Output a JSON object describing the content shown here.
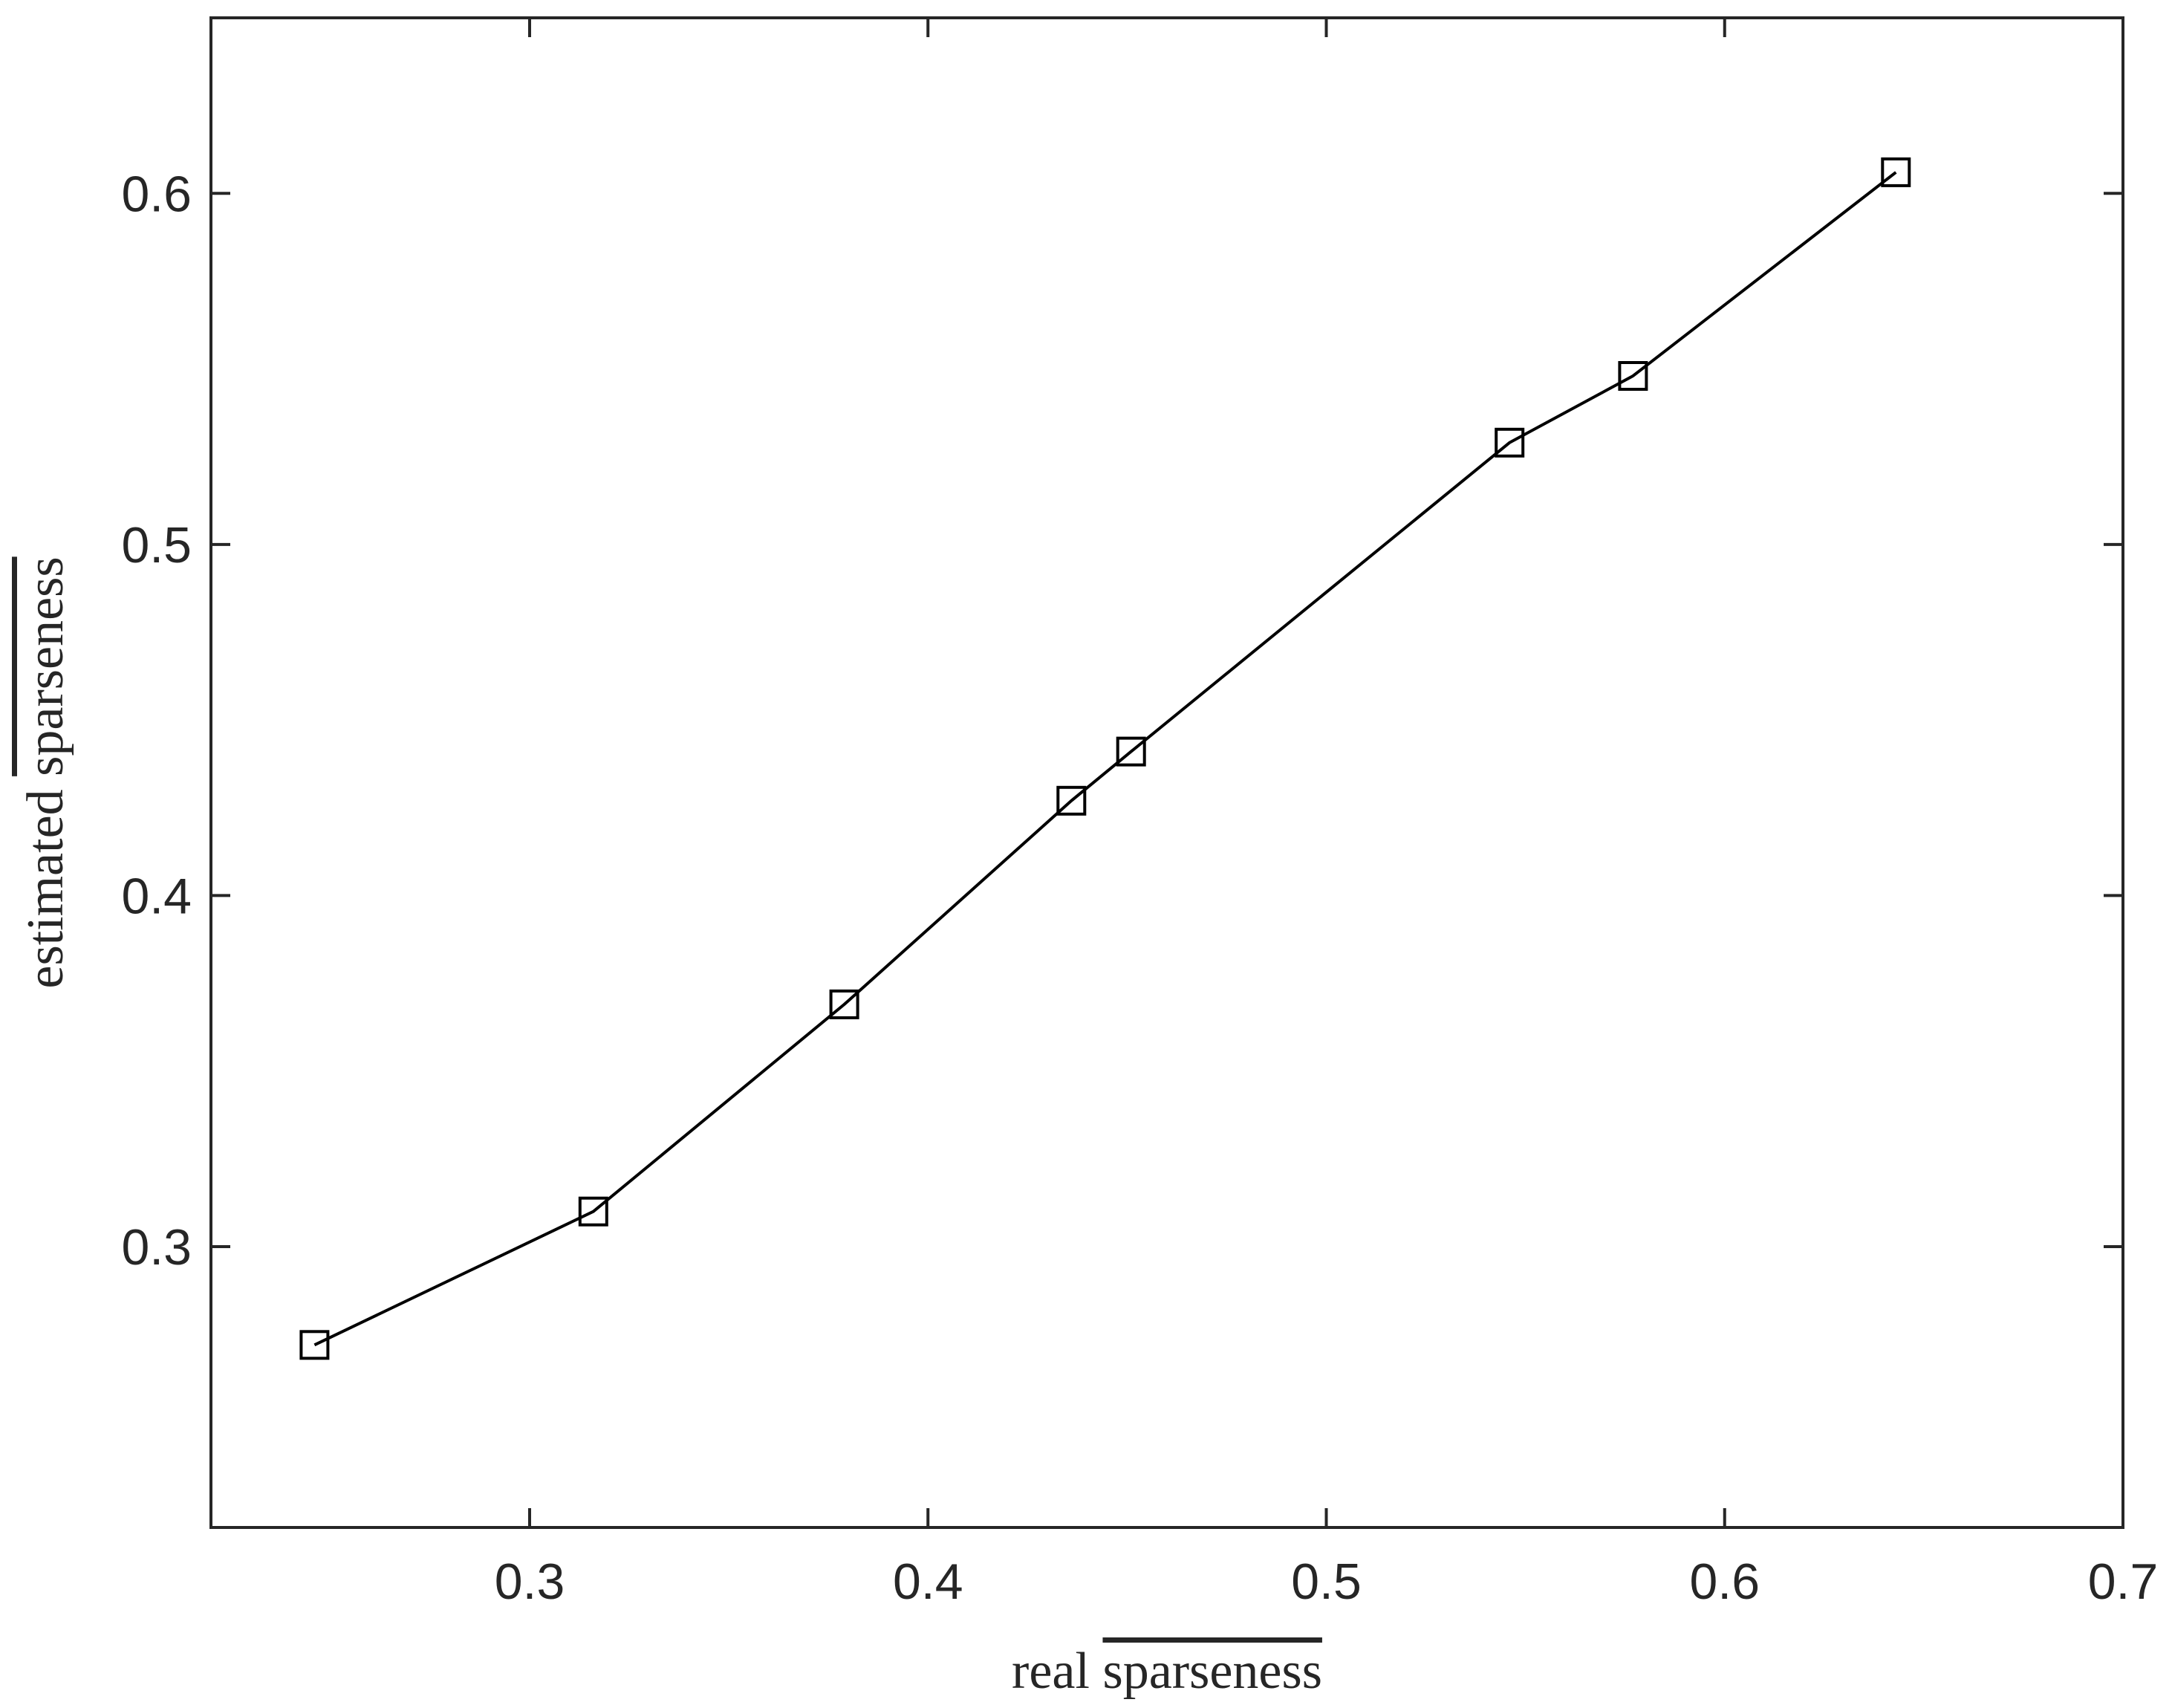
{
  "chart_data": {
    "type": "line",
    "title": "",
    "xlabel": {
      "prefix": "real ",
      "overlined": "sparseness"
    },
    "ylabel": {
      "prefix": "estimated ",
      "overlined": "sparseness"
    },
    "xlim": [
      0.22,
      0.7
    ],
    "ylim": [
      0.22,
      0.65
    ],
    "xticks": [
      0.3,
      0.4,
      0.5,
      0.6,
      0.7
    ],
    "yticks": [
      0.3,
      0.4,
      0.5,
      0.6
    ],
    "xtick_labels": [
      "0.3",
      "0.4",
      "0.5",
      "0.6",
      "0.7"
    ],
    "ytick_labels": [
      "0.3",
      "0.4",
      "0.5",
      "0.6"
    ],
    "grid": false,
    "legend": "none",
    "series": [
      {
        "marker": "square",
        "color": "#000000",
        "x": [
          0.246,
          0.316,
          0.379,
          0.436,
          0.451,
          0.546,
          0.577,
          0.643
        ],
        "y": [
          0.272,
          0.31,
          0.369,
          0.427,
          0.441,
          0.529,
          0.548,
          0.606
        ]
      }
    ]
  }
}
